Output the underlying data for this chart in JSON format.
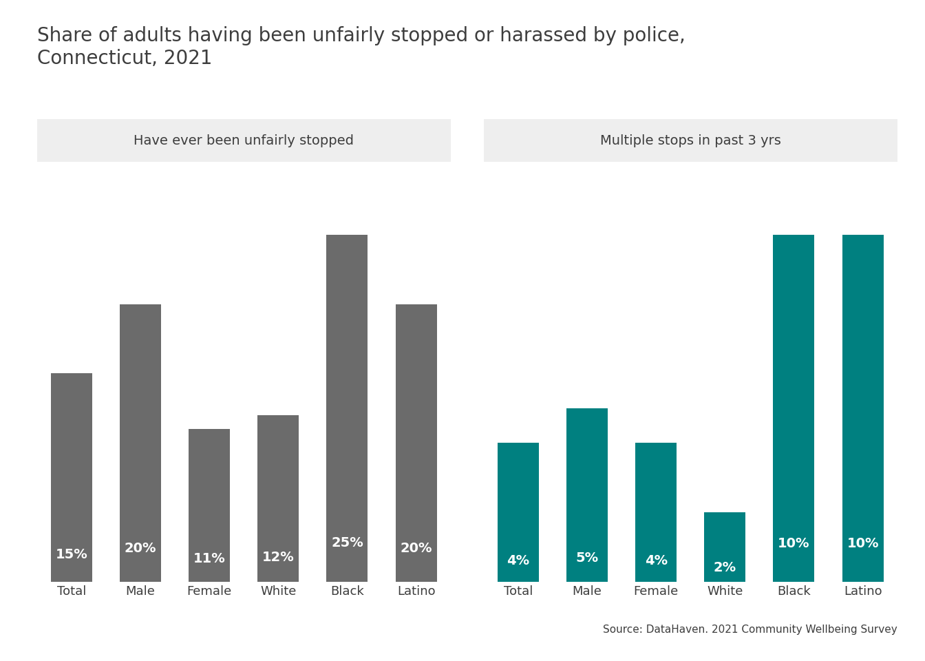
{
  "title": "Share of adults having been unfairly stopped or harassed by police,\nConnecticut, 2021",
  "panel1_title": "Have ever been unfairly stopped",
  "panel2_title": "Multiple stops in past 3 yrs",
  "categories": [
    "Total",
    "Male",
    "Female",
    "White",
    "Black",
    "Latino"
  ],
  "panel1_values": [
    15,
    20,
    11,
    12,
    25,
    20
  ],
  "panel2_values": [
    4,
    5,
    4,
    2,
    10,
    10
  ],
  "bar_color1": "#6b6b6b",
  "bar_color2": "#008080",
  "label_color": "#ffffff",
  "title_color": "#3d3d3d",
  "panel_bg_color": "#eeeeee",
  "source_text": "Source: DataHaven. 2021 Community Wellbeing Survey",
  "title_fontsize": 20,
  "panel_title_fontsize": 14,
  "bar_label_fontsize": 14,
  "axis_label_fontsize": 13,
  "source_fontsize": 11,
  "ylim1": [
    0,
    30
  ],
  "ylim2": [
    0,
    12
  ]
}
